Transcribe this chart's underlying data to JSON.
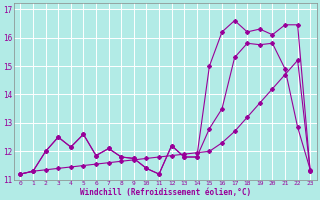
{
  "xlabel": "Windchill (Refroidissement éolien,°C)",
  "background_color": "#b2ebe6",
  "grid_color": "#ffffff",
  "line_color": "#990099",
  "xlim": [
    -0.5,
    23.5
  ],
  "ylim": [
    11.0,
    17.2
  ],
  "yticks": [
    11,
    12,
    13,
    14,
    15,
    16,
    17
  ],
  "xticks": [
    0,
    1,
    2,
    3,
    4,
    5,
    6,
    7,
    8,
    9,
    10,
    11,
    12,
    13,
    14,
    15,
    16,
    17,
    18,
    19,
    20,
    21,
    22,
    23
  ],
  "series1_x": [
    0,
    1,
    2,
    3,
    4,
    5,
    6,
    7,
    8,
    9,
    10,
    11,
    12,
    13,
    14,
    15,
    16,
    17,
    18,
    19,
    20,
    21,
    22,
    23
  ],
  "series1_y": [
    11.2,
    11.3,
    12.0,
    12.5,
    12.15,
    12.6,
    11.85,
    12.1,
    11.8,
    11.75,
    11.4,
    11.2,
    12.2,
    11.8,
    11.8,
    12.8,
    13.5,
    15.3,
    15.8,
    15.75,
    15.8,
    14.9,
    12.85,
    11.35
  ],
  "series2_x": [
    0,
    1,
    2,
    3,
    4,
    5,
    6,
    7,
    8,
    9,
    10,
    11,
    12,
    13,
    14,
    15,
    16,
    17,
    18,
    19,
    20,
    21,
    22,
    23
  ],
  "series2_y": [
    11.2,
    11.3,
    12.0,
    12.5,
    12.15,
    12.6,
    11.85,
    12.1,
    11.8,
    11.75,
    11.4,
    11.2,
    12.2,
    11.8,
    11.8,
    15.0,
    16.2,
    16.6,
    16.2,
    16.3,
    16.1,
    16.45,
    16.45,
    11.3
  ],
  "series3_x": [
    0,
    1,
    2,
    3,
    4,
    5,
    6,
    7,
    8,
    9,
    10,
    11,
    12,
    13,
    14,
    15,
    16,
    17,
    18,
    19,
    20,
    21,
    22,
    23
  ],
  "series3_y": [
    11.2,
    11.3,
    11.35,
    11.4,
    11.45,
    11.5,
    11.55,
    11.6,
    11.65,
    11.7,
    11.75,
    11.8,
    11.85,
    11.9,
    11.95,
    12.0,
    12.3,
    12.7,
    13.2,
    13.7,
    14.2,
    14.7,
    15.2,
    11.3
  ]
}
